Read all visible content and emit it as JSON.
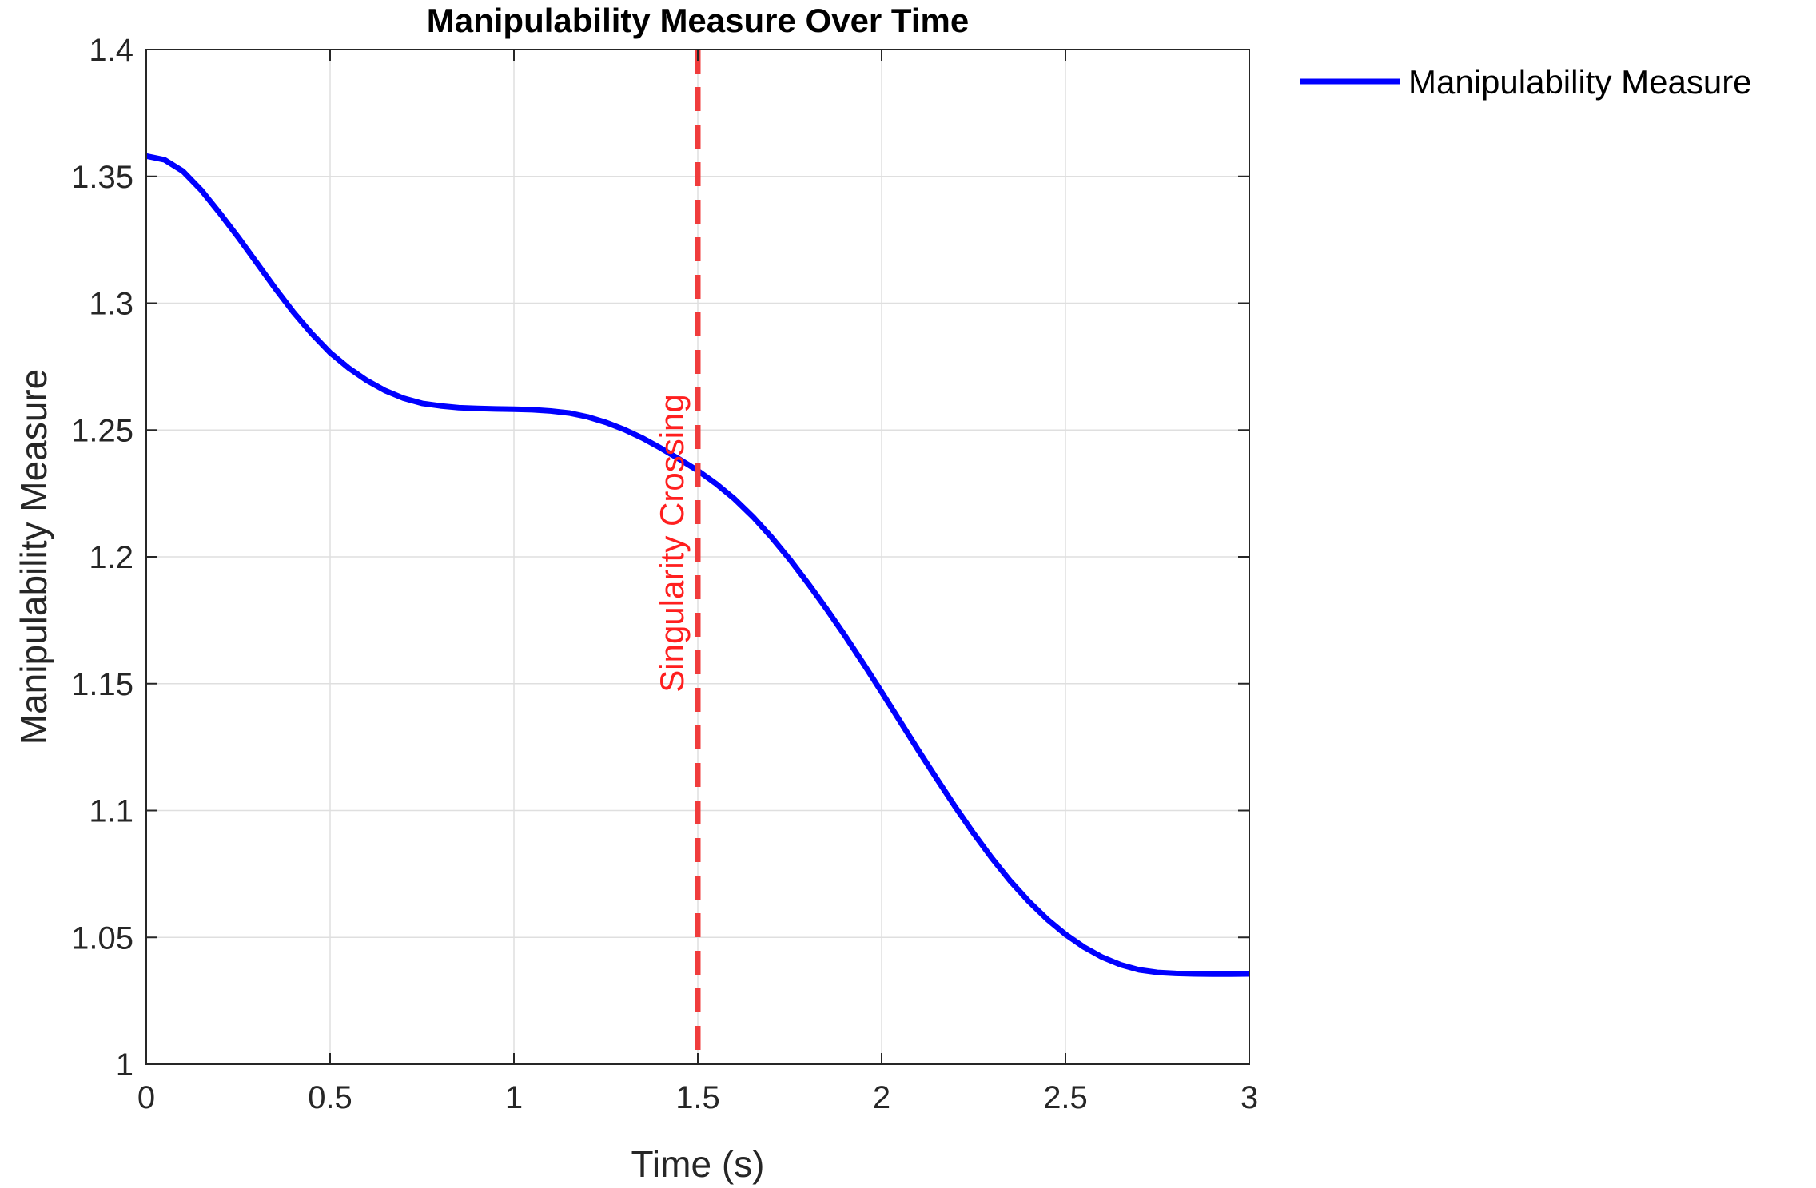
{
  "chart_data": {
    "type": "line",
    "title": "Manipulability Measure Over Time",
    "xlabel": "Time (s)",
    "ylabel": "Manipulability Measure",
    "xlim": [
      0,
      3
    ],
    "ylim": [
      1,
      1.4
    ],
    "xticks": [
      0,
      0.5,
      1,
      1.5,
      2,
      2.5,
      3
    ],
    "xtick_labels": [
      "0",
      "0.5",
      "1",
      "1.5",
      "2",
      "2.5",
      "3"
    ],
    "yticks": [
      1,
      1.05,
      1.1,
      1.15,
      1.2,
      1.25,
      1.3,
      1.35,
      1.4
    ],
    "ytick_labels": [
      "1",
      "1.05",
      "1.1",
      "1.15",
      "1.2",
      "1.25",
      "1.3",
      "1.35",
      "1.4"
    ],
    "grid": true,
    "legend_position": "outside-top-right",
    "series": [
      {
        "name": "Manipulability Measure",
        "color": "#0000ff",
        "x": [
          0,
          0.05,
          0.1,
          0.15,
          0.2,
          0.25,
          0.3,
          0.35,
          0.4,
          0.45,
          0.5,
          0.55,
          0.6,
          0.65,
          0.7,
          0.75,
          0.8,
          0.85,
          0.9,
          0.95,
          1.0,
          1.05,
          1.1,
          1.15,
          1.2,
          1.25,
          1.3,
          1.35,
          1.4,
          1.45,
          1.5,
          1.55,
          1.6,
          1.65,
          1.7,
          1.75,
          1.8,
          1.85,
          1.9,
          1.95,
          2.0,
          2.05,
          2.1,
          2.15,
          2.2,
          2.25,
          2.3,
          2.35,
          2.4,
          2.45,
          2.5,
          2.55,
          2.6,
          2.65,
          2.7,
          2.75,
          2.8,
          2.85,
          2.9,
          2.95,
          3.0
        ],
        "values": [
          1.358,
          1.3565,
          1.352,
          1.3445,
          1.3355,
          1.326,
          1.316,
          1.306,
          1.2965,
          1.288,
          1.2805,
          1.2745,
          1.2695,
          1.2655,
          1.2625,
          1.2605,
          1.2595,
          1.2588,
          1.2585,
          1.2583,
          1.2582,
          1.258,
          1.2575,
          1.2567,
          1.2552,
          1.253,
          1.2502,
          1.2468,
          1.2428,
          1.2385,
          1.234,
          1.2288,
          1.2228,
          1.2158,
          1.2078,
          1.199,
          1.1895,
          1.1795,
          1.169,
          1.158,
          1.1467,
          1.1352,
          1.1237,
          1.1125,
          1.1015,
          1.091,
          1.0812,
          1.0722,
          1.0642,
          1.0572,
          1.0512,
          1.0462,
          1.0422,
          1.0392,
          1.0372,
          1.0362,
          1.0358,
          1.0356,
          1.0355,
          1.0355,
          1.0356
        ]
      }
    ],
    "annotations": [
      {
        "type": "vline",
        "x": 1.5,
        "text": "Singularity Crossing",
        "color": "#f03c3c",
        "style": "dashed"
      }
    ]
  }
}
